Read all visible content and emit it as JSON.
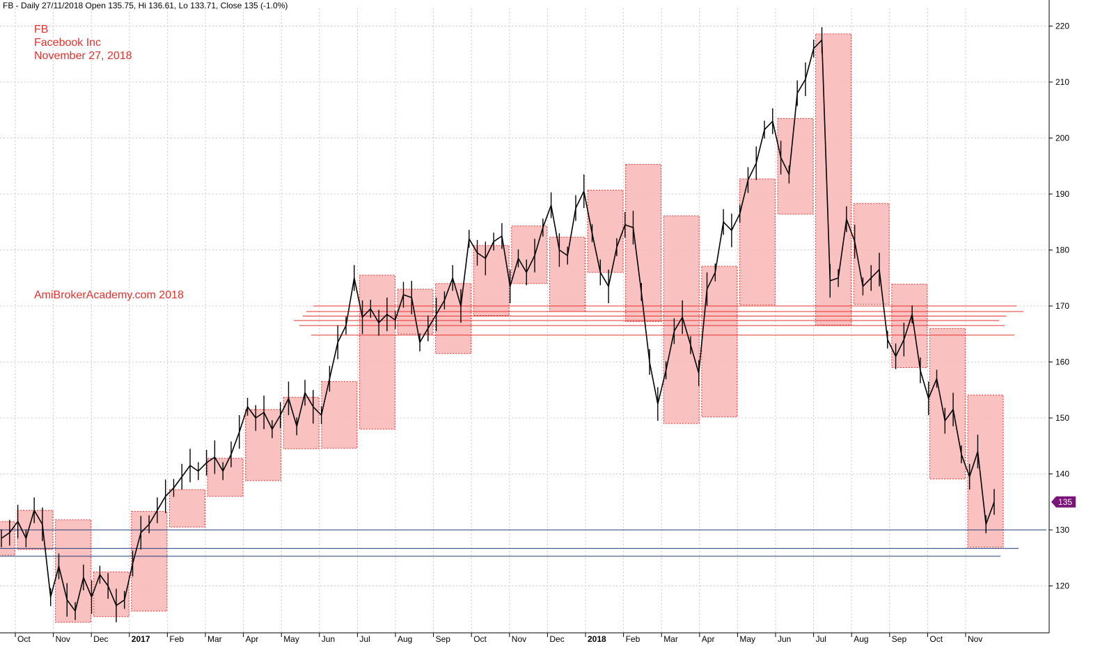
{
  "header": {
    "info_line": "FB - Daily 27/11/2018 Open 135.75, Hi 136.61, Lo 133.71, Close 135 (-1.0%)"
  },
  "annotations": {
    "symbol": "FB",
    "company": "Facebook Inc",
    "date": "November 27, 2018",
    "watermark": "AmiBrokerAcademy.com 2018"
  },
  "colors": {
    "price_bar": "#000000",
    "monthly_box_fill": "#f9b6b6",
    "monthly_box_border": "#e8302c",
    "resistance_line": "#e8302c",
    "support_line": "#1f3a7a",
    "grid": "#c8c8c8",
    "price_tag": "#7a1478"
  },
  "chart_data": {
    "type": "line",
    "title": "",
    "xlabel": "",
    "ylabel": "",
    "ylim": [
      113,
      224
    ],
    "y_ticks": [
      120,
      130,
      140,
      150,
      160,
      170,
      180,
      190,
      200,
      210,
      220
    ],
    "x_tick_labels": [
      "Oct",
      "Nov",
      "Dec",
      "2017",
      "Feb",
      "Mar",
      "Apr",
      "May",
      "Jun",
      "Jul",
      "Aug",
      "Sep",
      "Oct",
      "Nov",
      "Dec",
      "2018",
      "Feb",
      "Mar",
      "Apr",
      "May",
      "Jun",
      "Jul",
      "Aug",
      "Sep",
      "Oct",
      "Nov"
    ],
    "grid": true,
    "last_price_label": "135",
    "last_price": 135,
    "series": [
      {
        "values": [
          128.5,
          129.5,
          131.5,
          128.5,
          133.5,
          131.0,
          118.0,
          123.5,
          117.5,
          115.5,
          121.5,
          118.0,
          122.0,
          120.0,
          116.5,
          117.5,
          124.0,
          129.5,
          131.0,
          133.5,
          136.0,
          137.5,
          139.5,
          141.5,
          140.5,
          142.0,
          143.0,
          140.5,
          143.5,
          147.5,
          152.0,
          150.0,
          151.0,
          148.0,
          150.5,
          153.5,
          148.5,
          154.5,
          152.0,
          150.5,
          157.0,
          163.5,
          166.5,
          175.0,
          168.0,
          169.5,
          167.0,
          168.5,
          167.5,
          172.0,
          171.5,
          163.5,
          166.0,
          168.5,
          171.0,
          175.0,
          170.0,
          182.0,
          179.5,
          178.5,
          181.5,
          182.5,
          173.5,
          178.5,
          176.0,
          179.0,
          184.0,
          188.0,
          180.0,
          179.0,
          187.5,
          190.5,
          183.0,
          176.0,
          173.5,
          180.5,
          184.5,
          184.0,
          172.5,
          160.0,
          152.5,
          158.5,
          165.5,
          168.0,
          163.0,
          158.0,
          173.0,
          176.0,
          185.0,
          183.5,
          186.5,
          192.5,
          195.5,
          201.5,
          203.0,
          196.5,
          193.5,
          208.0,
          210.5,
          216.0,
          217.5,
          174.5,
          175.0,
          185.5,
          181.5,
          173.5,
          175.0,
          176.5,
          164.0,
          161.0,
          164.0,
          168.5,
          158.5,
          153.5,
          157.0,
          149.5,
          151.5,
          143.5,
          139.5,
          144.0,
          131.0,
          135.0
        ]
      }
    ],
    "monthly_boxes": [
      {
        "label": "Sep 2016",
        "low": 125.5,
        "high": 131.5
      },
      {
        "label": "Oct 2016",
        "low": 126.5,
        "high": 133.5
      },
      {
        "label": "Nov 2016",
        "low": 113.5,
        "high": 131.8
      },
      {
        "label": "Dec 2016",
        "low": 114.5,
        "high": 122.5
      },
      {
        "label": "Jan 2017",
        "low": 115.5,
        "high": 133.3
      },
      {
        "label": "Feb 2017",
        "low": 130.5,
        "high": 137.2
      },
      {
        "label": "Mar 2017",
        "low": 136.0,
        "high": 142.8
      },
      {
        "label": "Apr 2017",
        "low": 138.8,
        "high": 151.5
      },
      {
        "label": "May 2017",
        "low": 144.5,
        "high": 153.7
      },
      {
        "label": "Jun 2017",
        "low": 144.6,
        "high": 156.5
      },
      {
        "label": "Jul 2017",
        "low": 148.0,
        "high": 175.5
      },
      {
        "label": "Aug 2017",
        "low": 165.0,
        "high": 173.0
      },
      {
        "label": "Sep 2017",
        "low": 161.5,
        "high": 174.0
      },
      {
        "label": "Oct 2017",
        "low": 168.3,
        "high": 180.8
      },
      {
        "label": "Nov 2017",
        "low": 174.0,
        "high": 184.3
      },
      {
        "label": "Dec 2017",
        "low": 169.0,
        "high": 182.3
      },
      {
        "label": "Jan 2018",
        "low": 176.0,
        "high": 190.7
      },
      {
        "label": "Feb 2018",
        "low": 167.2,
        "high": 195.3
      },
      {
        "label": "Mar 2018",
        "low": 149.0,
        "high": 186.1
      },
      {
        "label": "Apr 2018",
        "low": 150.2,
        "high": 177.1
      },
      {
        "label": "May 2018",
        "low": 170.2,
        "high": 192.7
      },
      {
        "label": "Jun 2018",
        "low": 186.4,
        "high": 203.5
      },
      {
        "label": "Jul 2018",
        "low": 166.6,
        "high": 218.6
      },
      {
        "label": "Aug 2018",
        "low": 170.3,
        "high": 188.3
      },
      {
        "label": "Sep 2018",
        "low": 159.0,
        "high": 173.9
      },
      {
        "label": "Oct 2018",
        "low": 139.1,
        "high": 166.0
      },
      {
        "label": "Nov 2018",
        "low": 126.9,
        "high": 154.1
      }
    ],
    "resistance_levels": [
      170.0,
      169.0,
      168.2,
      167.4,
      166.5,
      164.8
    ],
    "support_levels": [
      130.0,
      126.7,
      125.3
    ]
  }
}
